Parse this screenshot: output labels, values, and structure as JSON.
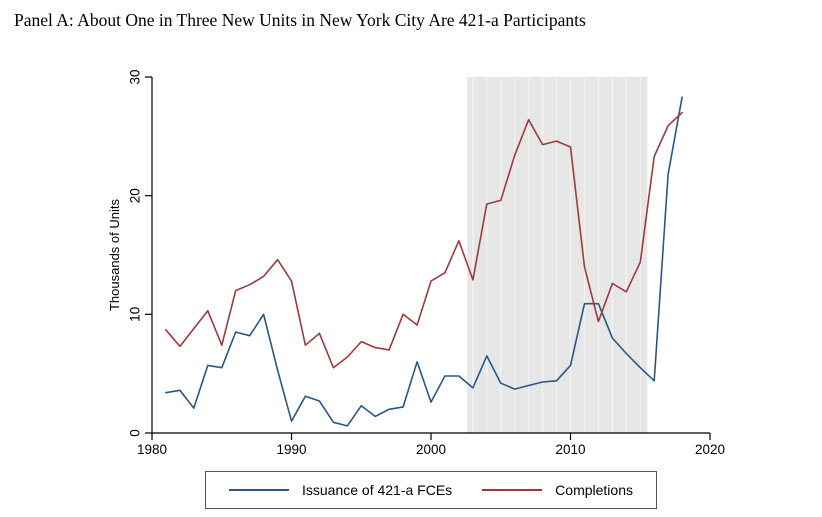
{
  "title": "Panel A: About One in Three New Units in New York City Are 421-a Participants",
  "chart_data": {
    "type": "line",
    "title": "Panel A: About One in Three New Units in New York City Are 421-a Participants",
    "xlabel": "",
    "ylabel": "Thousands of Units",
    "xlim": [
      1980,
      2020
    ],
    "ylim": [
      0,
      30
    ],
    "x_ticks": [
      1980,
      1990,
      2000,
      2010,
      2020
    ],
    "y_ticks": [
      0,
      10,
      20,
      30
    ],
    "grid": "off",
    "legend_position": "bottom",
    "shaded_region": {
      "x_start": 2002.6,
      "x_end": 2015.5,
      "color": "#e6e6e6",
      "gridline_color": "#f2f2f2"
    },
    "x": [
      1981,
      1982,
      1983,
      1984,
      1985,
      1986,
      1987,
      1988,
      1989,
      1990,
      1991,
      1992,
      1993,
      1994,
      1995,
      1996,
      1997,
      1998,
      1999,
      2000,
      2001,
      2002,
      2003,
      2004,
      2005,
      2006,
      2007,
      2008,
      2009,
      2010,
      2011,
      2012,
      2013,
      2014,
      2015,
      2016,
      2017,
      2018
    ],
    "series": [
      {
        "name": "Issuance of 421-a FCEs",
        "color": "#2a5783",
        "values": [
          3.4,
          3.6,
          2.1,
          5.7,
          5.5,
          8.5,
          8.2,
          10.0,
          5.3,
          1.0,
          3.1,
          2.7,
          0.9,
          0.6,
          2.3,
          1.4,
          2.0,
          2.2,
          6.0,
          2.6,
          4.8,
          4.8,
          3.8,
          6.5,
          4.2,
          3.7,
          4.0,
          4.3,
          4.4,
          5.7,
          10.9,
          10.9,
          8.0,
          6.7,
          5.5,
          4.4,
          21.8,
          28.3
        ]
      },
      {
        "name": "Completions",
        "color": "#9e3a3c",
        "values": [
          8.7,
          7.3,
          8.8,
          10.3,
          7.4,
          12.0,
          12.5,
          13.2,
          14.6,
          12.8,
          7.4,
          8.4,
          5.5,
          6.4,
          7.7,
          7.2,
          7.0,
          10.0,
          9.1,
          12.8,
          13.5,
          16.2,
          12.9,
          19.3,
          19.6,
          23.4,
          26.4,
          24.3,
          24.6,
          24.1,
          14.0,
          9.4,
          12.6,
          11.9,
          14.4,
          23.3,
          25.9,
          27.0
        ]
      }
    ],
    "axis_color": "#000000"
  }
}
